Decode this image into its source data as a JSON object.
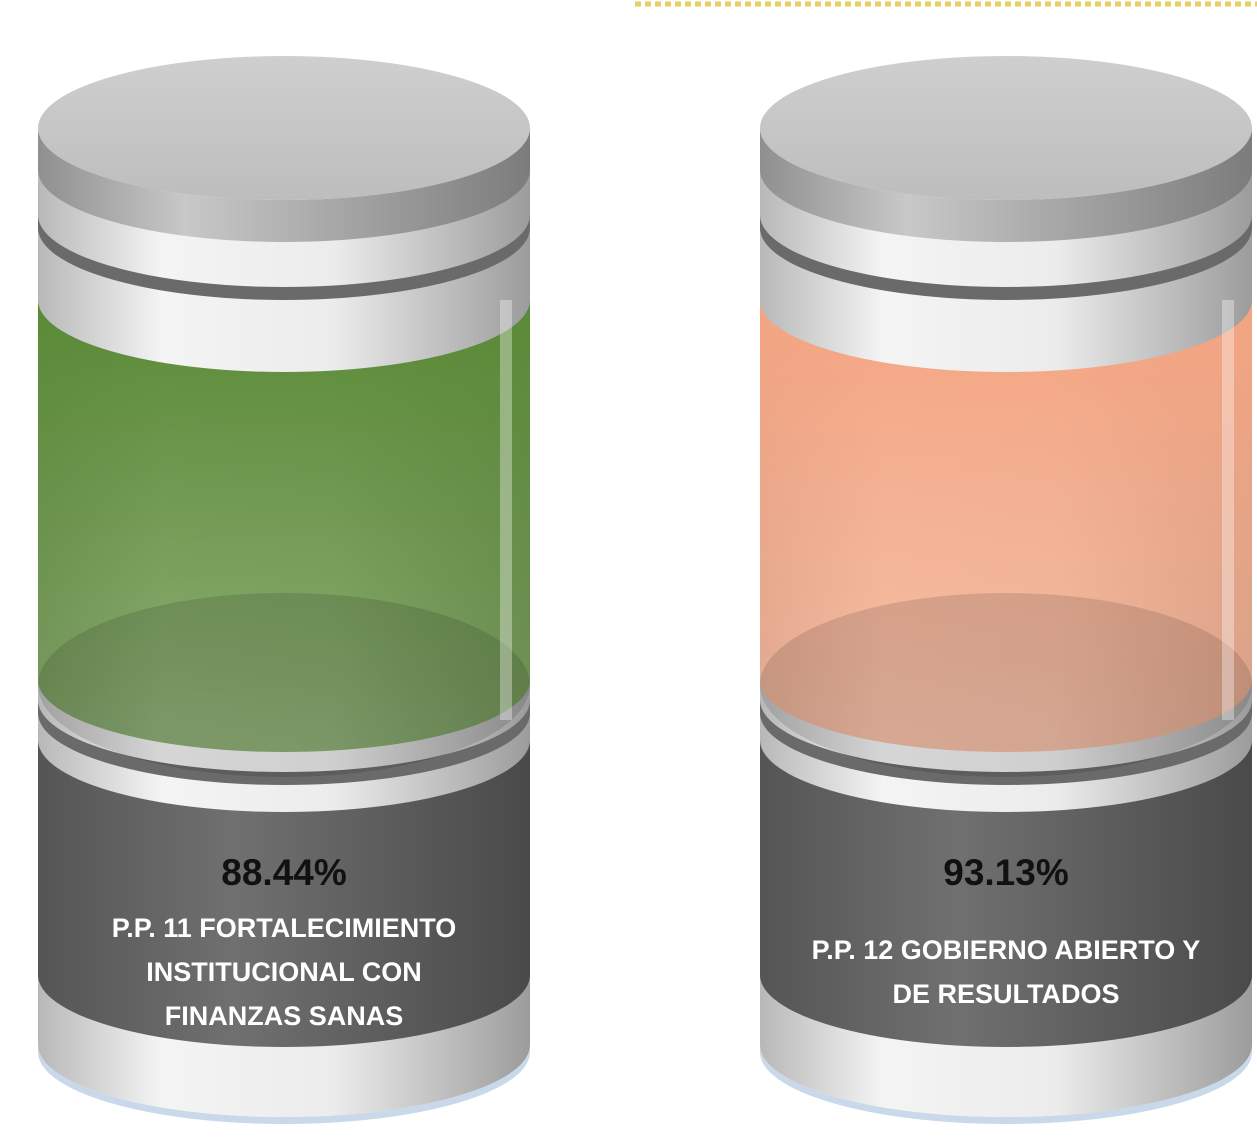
{
  "cylinders": [
    {
      "value": "88.44%",
      "label": "P.P. 11 FORTALECIMIENTO INSTITUCIONAL CON FINANZAS SANAS",
      "color": "#5a8a36"
    },
    {
      "value": "93.13%",
      "label": "P.P. 12 GOBIERNO ABIERTO Y DE RESULTADOS",
      "color": "#f4a582"
    }
  ]
}
